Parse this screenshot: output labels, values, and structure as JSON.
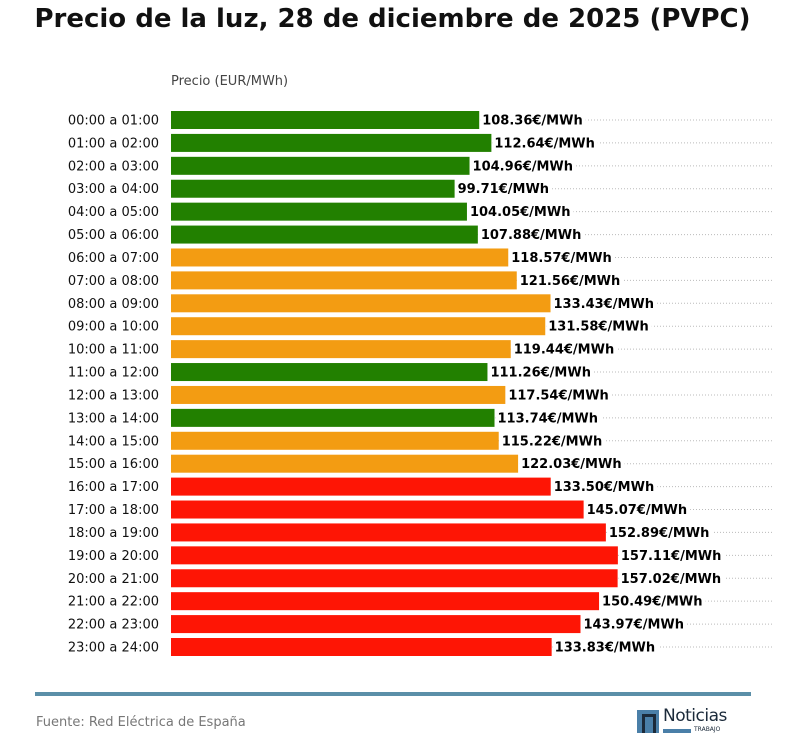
{
  "chart_data": {
    "type": "bar",
    "orientation": "horizontal",
    "title": "Precio de la luz, 28 de diciembre de 2025 (PVPC)",
    "xlabel": "Precio (EUR/MWh)",
    "value_suffix": "€/MWh",
    "xlim": [
      0,
      212
    ],
    "grid": "dotted horizontal lines",
    "categories": [
      "00:00 a 01:00",
      "01:00 a 02:00",
      "02:00 a 03:00",
      "03:00 a 04:00",
      "04:00 a 05:00",
      "05:00 a 06:00",
      "06:00 a 07:00",
      "07:00 a 08:00",
      "08:00 a 09:00",
      "09:00 a 10:00",
      "10:00 a 11:00",
      "11:00 a 12:00",
      "12:00 a 13:00",
      "13:00 a 14:00",
      "14:00 a 15:00",
      "15:00 a 16:00",
      "16:00 a 17:00",
      "17:00 a 18:00",
      "18:00 a 19:00",
      "19:00 a 20:00",
      "20:00 a 21:00",
      "21:00 a 22:00",
      "22:00 a 23:00",
      "23:00 a 24:00"
    ],
    "values": [
      108.36,
      112.64,
      104.96,
      99.71,
      104.05,
      107.88,
      118.57,
      121.56,
      133.43,
      131.58,
      119.44,
      111.26,
      117.54,
      113.74,
      115.22,
      122.03,
      133.5,
      145.07,
      152.89,
      157.11,
      157.02,
      150.49,
      143.97,
      133.83
    ],
    "levels": [
      "low",
      "low",
      "low",
      "low",
      "low",
      "low",
      "mid",
      "mid",
      "mid",
      "mid",
      "mid",
      "low",
      "mid",
      "low",
      "mid",
      "mid",
      "high",
      "high",
      "high",
      "high",
      "high",
      "high",
      "high",
      "high"
    ],
    "colors": {
      "low": "#228000",
      "mid": "#f39c12",
      "high": "#fe1505"
    }
  },
  "footer": {
    "source": "Fuente: Red Eléctrica de España",
    "logo_text": "Noticias",
    "logo_sub": "TRABAJO",
    "rule_color": "#5b8fa8"
  }
}
